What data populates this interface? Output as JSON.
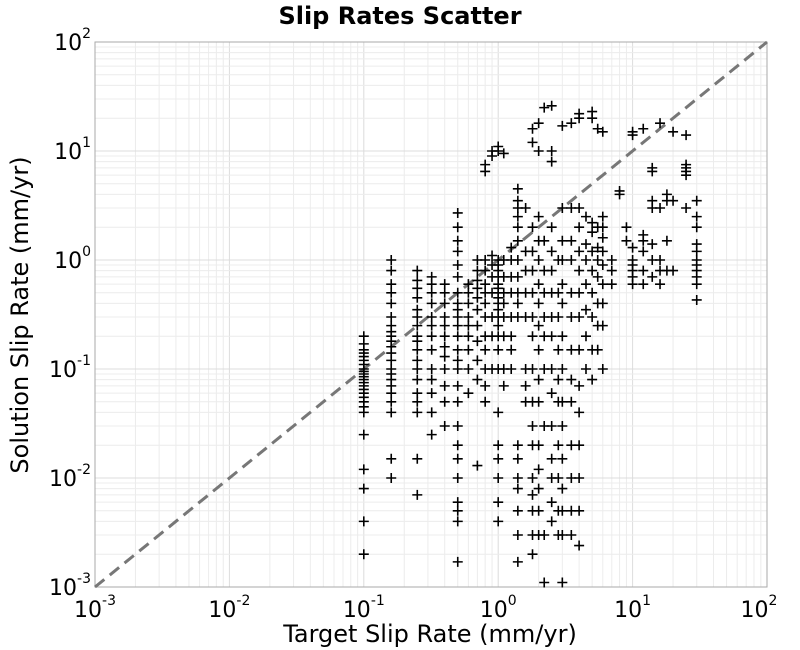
{
  "chart_data": {
    "type": "scatter",
    "title": "Slip Rates Scatter",
    "xlabel": "Target Slip Rate (mm/yr)",
    "ylabel": "Solution Slip Rate (mm/yr)",
    "x_scale": "log",
    "y_scale": "log",
    "xlim": [
      0.001,
      100
    ],
    "ylim": [
      0.001,
      100
    ],
    "grid": true,
    "marker": "+",
    "marker_color": "#000000",
    "reference_line": {
      "style": "dashed",
      "color": "#777777",
      "from": [
        0.001,
        0.001
      ],
      "to": [
        100,
        100
      ]
    },
    "x_ticks": [
      {
        "base": "10",
        "exp": "-3"
      },
      {
        "base": "10",
        "exp": "-2"
      },
      {
        "base": "10",
        "exp": "-1"
      },
      {
        "base": "10",
        "exp": "0"
      },
      {
        "base": "10",
        "exp": "1"
      },
      {
        "base": "10",
        "exp": "2"
      }
    ],
    "y_ticks": [
      {
        "base": "10",
        "exp": "-3"
      },
      {
        "base": "10",
        "exp": "-2"
      },
      {
        "base": "10",
        "exp": "-1"
      },
      {
        "base": "10",
        "exp": "0"
      },
      {
        "base": "10",
        "exp": "1"
      },
      {
        "base": "10",
        "exp": "2"
      }
    ],
    "points": [
      [
        0.1,
        0.002
      ],
      [
        0.1,
        0.004
      ],
      [
        0.1,
        0.008
      ],
      [
        0.1,
        0.012
      ],
      [
        0.1,
        0.025
      ],
      [
        0.1,
        0.04
      ],
      [
        0.1,
        0.045
      ],
      [
        0.1,
        0.05
      ],
      [
        0.1,
        0.055
      ],
      [
        0.1,
        0.06
      ],
      [
        0.1,
        0.065
      ],
      [
        0.1,
        0.07
      ],
      [
        0.1,
        0.075
      ],
      [
        0.1,
        0.08
      ],
      [
        0.1,
        0.085
      ],
      [
        0.1,
        0.09
      ],
      [
        0.1,
        0.095
      ],
      [
        0.1,
        0.1
      ],
      [
        0.1,
        0.11
      ],
      [
        0.1,
        0.12
      ],
      [
        0.1,
        0.13
      ],
      [
        0.1,
        0.14
      ],
      [
        0.1,
        0.15
      ],
      [
        0.1,
        0.17
      ],
      [
        0.1,
        0.2
      ],
      [
        0.16,
        0.01
      ],
      [
        0.16,
        0.015
      ],
      [
        0.16,
        0.04
      ],
      [
        0.16,
        0.05
      ],
      [
        0.16,
        0.06
      ],
      [
        0.16,
        0.07
      ],
      [
        0.16,
        0.08
      ],
      [
        0.16,
        0.09
      ],
      [
        0.16,
        0.1
      ],
      [
        0.16,
        0.12
      ],
      [
        0.16,
        0.14
      ],
      [
        0.16,
        0.16
      ],
      [
        0.16,
        0.18
      ],
      [
        0.16,
        0.2
      ],
      [
        0.16,
        0.22
      ],
      [
        0.16,
        0.25
      ],
      [
        0.16,
        0.3
      ],
      [
        0.16,
        0.4
      ],
      [
        0.16,
        0.5
      ],
      [
        0.16,
        0.6
      ],
      [
        0.16,
        0.8
      ],
      [
        0.16,
        1.0
      ],
      [
        0.25,
        0.007
      ],
      [
        0.25,
        0.015
      ],
      [
        0.25,
        0.04
      ],
      [
        0.25,
        0.05
      ],
      [
        0.25,
        0.06
      ],
      [
        0.25,
        0.08
      ],
      [
        0.25,
        0.1
      ],
      [
        0.25,
        0.12
      ],
      [
        0.25,
        0.15
      ],
      [
        0.25,
        0.18
      ],
      [
        0.25,
        0.2
      ],
      [
        0.25,
        0.25
      ],
      [
        0.25,
        0.3
      ],
      [
        0.25,
        0.35
      ],
      [
        0.25,
        0.45
      ],
      [
        0.25,
        0.55
      ],
      [
        0.25,
        0.65
      ],
      [
        0.25,
        0.8
      ],
      [
        0.32,
        0.025
      ],
      [
        0.32,
        0.04
      ],
      [
        0.32,
        0.06
      ],
      [
        0.32,
        0.08
      ],
      [
        0.32,
        0.1
      ],
      [
        0.32,
        0.15
      ],
      [
        0.32,
        0.2
      ],
      [
        0.32,
        0.25
      ],
      [
        0.32,
        0.3
      ],
      [
        0.32,
        0.4
      ],
      [
        0.32,
        0.5
      ],
      [
        0.32,
        0.6
      ],
      [
        0.32,
        0.7
      ],
      [
        0.4,
        0.03
      ],
      [
        0.4,
        0.05
      ],
      [
        0.4,
        0.07
      ],
      [
        0.4,
        0.1
      ],
      [
        0.4,
        0.13
      ],
      [
        0.4,
        0.16
      ],
      [
        0.4,
        0.2
      ],
      [
        0.4,
        0.25
      ],
      [
        0.4,
        0.3
      ],
      [
        0.4,
        0.4
      ],
      [
        0.4,
        0.5
      ],
      [
        0.4,
        0.6
      ],
      [
        0.5,
        0.0017
      ],
      [
        0.5,
        0.004
      ],
      [
        0.5,
        0.005
      ],
      [
        0.5,
        0.006
      ],
      [
        0.5,
        0.01
      ],
      [
        0.5,
        0.015
      ],
      [
        0.5,
        0.02
      ],
      [
        0.5,
        0.03
      ],
      [
        0.5,
        0.05
      ],
      [
        0.5,
        0.07
      ],
      [
        0.5,
        0.1
      ],
      [
        0.5,
        0.12
      ],
      [
        0.5,
        0.15
      ],
      [
        0.5,
        0.2
      ],
      [
        0.5,
        0.25
      ],
      [
        0.5,
        0.3
      ],
      [
        0.5,
        0.35
      ],
      [
        0.5,
        0.4
      ],
      [
        0.5,
        0.5
      ],
      [
        0.5,
        0.7
      ],
      [
        0.5,
        0.9
      ],
      [
        0.5,
        1.2
      ],
      [
        0.5,
        1.5
      ],
      [
        0.5,
        2.0
      ],
      [
        0.5,
        2.7
      ],
      [
        0.6,
        0.06
      ],
      [
        0.6,
        0.1
      ],
      [
        0.6,
        0.15
      ],
      [
        0.6,
        0.2
      ],
      [
        0.6,
        0.25
      ],
      [
        0.6,
        0.3
      ],
      [
        0.6,
        0.4
      ],
      [
        0.6,
        0.5
      ],
      [
        0.6,
        0.6
      ],
      [
        0.7,
        0.013
      ],
      [
        0.7,
        0.08
      ],
      [
        0.7,
        0.12
      ],
      [
        0.7,
        0.18
      ],
      [
        0.7,
        0.25
      ],
      [
        0.7,
        0.35
      ],
      [
        0.7,
        0.45
      ],
      [
        0.7,
        0.55
      ],
      [
        0.7,
        0.65
      ],
      [
        0.7,
        0.8
      ],
      [
        0.7,
        1.0
      ],
      [
        0.8,
        0.05
      ],
      [
        0.8,
        0.07
      ],
      [
        0.8,
        0.1
      ],
      [
        0.8,
        0.15
      ],
      [
        0.8,
        0.2
      ],
      [
        0.8,
        0.3
      ],
      [
        0.8,
        0.4
      ],
      [
        0.8,
        0.5
      ],
      [
        0.8,
        0.6
      ],
      [
        0.8,
        0.8
      ],
      [
        0.8,
        1.0
      ],
      [
        0.8,
        6.5
      ],
      [
        0.8,
        7.5
      ],
      [
        0.9,
        0.1
      ],
      [
        0.9,
        0.2
      ],
      [
        0.9,
        0.3
      ],
      [
        0.9,
        0.5
      ],
      [
        0.9,
        0.7
      ],
      [
        0.9,
        0.9
      ],
      [
        0.9,
        1.1
      ],
      [
        0.9,
        9.0
      ],
      [
        0.9,
        10.0
      ],
      [
        1.0,
        0.004
      ],
      [
        1.0,
        0.006
      ],
      [
        1.0,
        0.01
      ],
      [
        1.0,
        0.015
      ],
      [
        1.0,
        0.02
      ],
      [
        1.0,
        0.04
      ],
      [
        1.0,
        0.1
      ],
      [
        1.0,
        0.15
      ],
      [
        1.0,
        0.2
      ],
      [
        1.0,
        0.25
      ],
      [
        1.0,
        0.3
      ],
      [
        1.0,
        0.35
      ],
      [
        1.0,
        0.4
      ],
      [
        1.0,
        0.45
      ],
      [
        1.0,
        0.5
      ],
      [
        1.0,
        0.55
      ],
      [
        1.0,
        0.6
      ],
      [
        1.0,
        0.7
      ],
      [
        1.0,
        0.8
      ],
      [
        1.0,
        0.9
      ],
      [
        1.0,
        1.0
      ],
      [
        1.0,
        10.0
      ],
      [
        1.0,
        11.0
      ],
      [
        1.1,
        0.07
      ],
      [
        1.1,
        0.1
      ],
      [
        1.1,
        0.2
      ],
      [
        1.1,
        0.3
      ],
      [
        1.1,
        0.4
      ],
      [
        1.1,
        0.5
      ],
      [
        1.1,
        0.7
      ],
      [
        1.1,
        1.0
      ],
      [
        1.1,
        9.5
      ],
      [
        1.25,
        0.1
      ],
      [
        1.25,
        0.15
      ],
      [
        1.25,
        0.2
      ],
      [
        1.25,
        0.3
      ],
      [
        1.25,
        0.5
      ],
      [
        1.25,
        0.7
      ],
      [
        1.25,
        1.0
      ],
      [
        1.25,
        1.3
      ],
      [
        1.4,
        0.0017
      ],
      [
        1.4,
        0.003
      ],
      [
        1.4,
        0.005
      ],
      [
        1.4,
        0.008
      ],
      [
        1.4,
        0.01
      ],
      [
        1.4,
        0.015
      ],
      [
        1.4,
        0.02
      ],
      [
        1.4,
        0.3
      ],
      [
        1.4,
        0.4
      ],
      [
        1.4,
        0.5
      ],
      [
        1.4,
        0.7
      ],
      [
        1.4,
        1.0
      ],
      [
        1.4,
        1.5
      ],
      [
        1.4,
        2.0
      ],
      [
        1.4,
        2.5
      ],
      [
        1.4,
        3.0
      ],
      [
        1.4,
        3.5
      ],
      [
        1.4,
        4.5
      ],
      [
        1.6,
        0.05
      ],
      [
        1.6,
        0.07
      ],
      [
        1.6,
        0.1
      ],
      [
        1.6,
        0.3
      ],
      [
        1.6,
        0.5
      ],
      [
        1.6,
        0.8
      ],
      [
        1.6,
        1.2
      ],
      [
        1.6,
        3.0
      ],
      [
        1.8,
        0.002
      ],
      [
        1.8,
        0.003
      ],
      [
        1.8,
        0.005
      ],
      [
        1.8,
        0.007
      ],
      [
        1.8,
        0.01
      ],
      [
        1.8,
        0.02
      ],
      [
        1.8,
        0.03
      ],
      [
        1.8,
        0.05
      ],
      [
        1.8,
        0.1
      ],
      [
        1.8,
        0.2
      ],
      [
        1.8,
        0.3
      ],
      [
        1.8,
        0.5
      ],
      [
        1.8,
        0.8
      ],
      [
        1.8,
        1.2
      ],
      [
        1.8,
        2.0
      ],
      [
        1.8,
        12.0
      ],
      [
        1.8,
        16.0
      ],
      [
        2.0,
        0.003
      ],
      [
        2.0,
        0.005
      ],
      [
        2.0,
        0.008
      ],
      [
        2.0,
        0.012
      ],
      [
        2.0,
        0.02
      ],
      [
        2.0,
        0.05
      ],
      [
        2.0,
        0.08
      ],
      [
        2.0,
        0.15
      ],
      [
        2.0,
        0.25
      ],
      [
        2.0,
        0.4
      ],
      [
        2.0,
        0.6
      ],
      [
        2.0,
        1.0
      ],
      [
        2.0,
        1.5
      ],
      [
        2.0,
        2.5
      ],
      [
        2.0,
        10.0
      ],
      [
        2.0,
        18.0
      ],
      [
        2.2,
        0.0011
      ],
      [
        2.2,
        0.003
      ],
      [
        2.2,
        0.03
      ],
      [
        2.2,
        0.1
      ],
      [
        2.2,
        0.2
      ],
      [
        2.2,
        0.3
      ],
      [
        2.2,
        0.5
      ],
      [
        2.2,
        0.8
      ],
      [
        2.2,
        1.5
      ],
      [
        2.2,
        25.0
      ],
      [
        2.5,
        0.004
      ],
      [
        2.5,
        0.006
      ],
      [
        2.5,
        0.01
      ],
      [
        2.5,
        0.015
      ],
      [
        2.5,
        0.03
      ],
      [
        2.5,
        0.06
      ],
      [
        2.5,
        0.1
      ],
      [
        2.5,
        0.2
      ],
      [
        2.5,
        0.3
      ],
      [
        2.5,
        0.5
      ],
      [
        2.5,
        0.8
      ],
      [
        2.5,
        1.2
      ],
      [
        2.5,
        2.0
      ],
      [
        2.5,
        8.0
      ],
      [
        2.5,
        10.0
      ],
      [
        2.5,
        26.0
      ],
      [
        2.8,
        0.003
      ],
      [
        2.8,
        0.005
      ],
      [
        2.8,
        0.01
      ],
      [
        2.8,
        0.02
      ],
      [
        2.8,
        0.05
      ],
      [
        2.8,
        0.08
      ],
      [
        2.8,
        0.15
      ],
      [
        2.8,
        0.3
      ],
      [
        2.8,
        0.5
      ],
      [
        2.8,
        1.0
      ],
      [
        3.0,
        0.0011
      ],
      [
        3.0,
        0.003
      ],
      [
        3.0,
        0.005
      ],
      [
        3.0,
        0.008
      ],
      [
        3.0,
        0.015
      ],
      [
        3.0,
        0.03
      ],
      [
        3.0,
        0.05
      ],
      [
        3.0,
        0.1
      ],
      [
        3.0,
        0.2
      ],
      [
        3.0,
        0.4
      ],
      [
        3.0,
        0.6
      ],
      [
        3.0,
        1.0
      ],
      [
        3.0,
        1.5
      ],
      [
        3.0,
        3.0
      ],
      [
        3.0,
        17.0
      ],
      [
        3.5,
        0.003
      ],
      [
        3.5,
        0.005
      ],
      [
        3.5,
        0.01
      ],
      [
        3.5,
        0.02
      ],
      [
        3.5,
        0.05
      ],
      [
        3.5,
        0.08
      ],
      [
        3.5,
        0.15
      ],
      [
        3.5,
        0.3
      ],
      [
        3.5,
        0.5
      ],
      [
        3.5,
        1.0
      ],
      [
        3.5,
        1.5
      ],
      [
        3.5,
        3.0
      ],
      [
        3.5,
        18.0
      ],
      [
        4.0,
        0.0024
      ],
      [
        4.0,
        0.005
      ],
      [
        4.0,
        0.01
      ],
      [
        4.0,
        0.02
      ],
      [
        4.0,
        0.04
      ],
      [
        4.0,
        0.07
      ],
      [
        4.0,
        0.15
      ],
      [
        4.0,
        0.3
      ],
      [
        4.0,
        0.5
      ],
      [
        4.0,
        0.8
      ],
      [
        4.0,
        1.2
      ],
      [
        4.0,
        2.0
      ],
      [
        4.0,
        3.0
      ],
      [
        4.0,
        20.0
      ],
      [
        4.0,
        22.0
      ],
      [
        4.5,
        0.1
      ],
      [
        4.5,
        0.2
      ],
      [
        4.5,
        0.35
      ],
      [
        4.5,
        0.6
      ],
      [
        4.5,
        1.0
      ],
      [
        4.5,
        1.4
      ],
      [
        4.5,
        2.5
      ],
      [
        5.0,
        0.08
      ],
      [
        5.0,
        0.15
      ],
      [
        5.0,
        0.3
      ],
      [
        5.0,
        0.5
      ],
      [
        5.0,
        0.8
      ],
      [
        5.0,
        1.2
      ],
      [
        5.0,
        1.8
      ],
      [
        5.0,
        2.2
      ],
      [
        5.0,
        20.0
      ],
      [
        5.0,
        23.0
      ],
      [
        5.5,
        0.15
      ],
      [
        5.5,
        0.25
      ],
      [
        5.5,
        0.4
      ],
      [
        5.5,
        0.7
      ],
      [
        5.5,
        1.0
      ],
      [
        5.5,
        1.3
      ],
      [
        5.5,
        2.0
      ],
      [
        5.5,
        16.0
      ],
      [
        6.0,
        0.1
      ],
      [
        6.0,
        0.25
      ],
      [
        6.0,
        0.4
      ],
      [
        6.0,
        0.6
      ],
      [
        6.0,
        0.9
      ],
      [
        6.0,
        1.2
      ],
      [
        6.0,
        1.6
      ],
      [
        6.0,
        2.0
      ],
      [
        6.0,
        2.5
      ],
      [
        6.0,
        15.0
      ],
      [
        7.0,
        0.6
      ],
      [
        7.0,
        0.8
      ],
      [
        7.0,
        1.0
      ],
      [
        8.0,
        4.0
      ],
      [
        8.0,
        4.3
      ],
      [
        9.0,
        1.5
      ],
      [
        9.0,
        2.0
      ],
      [
        10.0,
        0.6
      ],
      [
        10.0,
        0.7
      ],
      [
        10.0,
        0.8
      ],
      [
        10.0,
        0.9
      ],
      [
        10.0,
        1.0
      ],
      [
        10.0,
        1.3
      ],
      [
        10.0,
        14.0
      ],
      [
        10.0,
        15.0
      ],
      [
        12.0,
        0.6
      ],
      [
        12.0,
        0.8
      ],
      [
        12.0,
        1.2
      ],
      [
        12.0,
        1.5
      ],
      [
        12.0,
        1.7
      ],
      [
        12.0,
        16.0
      ],
      [
        14.0,
        0.7
      ],
      [
        14.0,
        1.0
      ],
      [
        14.0,
        1.4
      ],
      [
        14.0,
        3.0
      ],
      [
        14.0,
        3.5
      ],
      [
        14.0,
        6.5
      ],
      [
        14.0,
        7.0
      ],
      [
        16.0,
        0.6
      ],
      [
        16.0,
        0.8
      ],
      [
        16.0,
        1.0
      ],
      [
        16.0,
        3.0
      ],
      [
        16.0,
        18.0
      ],
      [
        18.0,
        0.8
      ],
      [
        18.0,
        1.5
      ],
      [
        18.0,
        3.5
      ],
      [
        18.0,
        4.0
      ],
      [
        20.0,
        0.8
      ],
      [
        20.0,
        3.5
      ],
      [
        20.0,
        15.0
      ],
      [
        25.0,
        3.0
      ],
      [
        25.0,
        6.0
      ],
      [
        25.0,
        6.5
      ],
      [
        25.0,
        7.0
      ],
      [
        25.0,
        7.5
      ],
      [
        25.0,
        14.0
      ],
      [
        30.0,
        0.43
      ],
      [
        30.0,
        0.6
      ],
      [
        30.0,
        0.7
      ],
      [
        30.0,
        0.8
      ],
      [
        30.0,
        0.9
      ],
      [
        30.0,
        1.0
      ],
      [
        30.0,
        1.2
      ],
      [
        30.0,
        1.4
      ],
      [
        30.0,
        2.0
      ],
      [
        30.0,
        2.5
      ],
      [
        30.0,
        3.5
      ]
    ]
  }
}
